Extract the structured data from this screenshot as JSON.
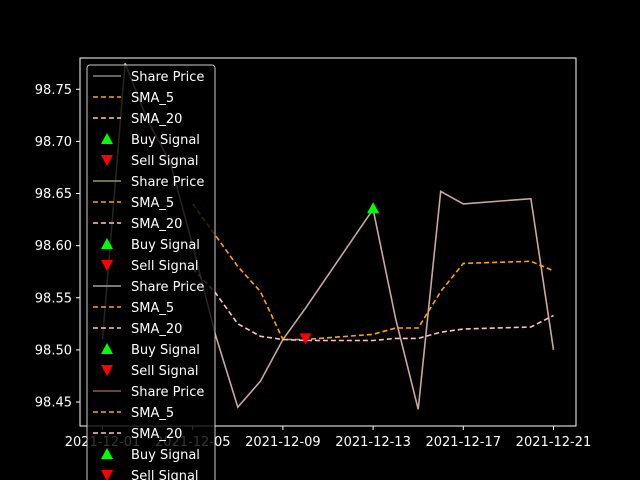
{
  "chart_data": {
    "type": "line",
    "title": "",
    "xlabel": "",
    "ylabel": "",
    "background": "#000000",
    "foreground": "#ffffff",
    "x_tick_labels": [
      "2021-12-01",
      "2021-12-05",
      "2021-12-09",
      "2021-12-13",
      "2021-12-17",
      "2021-12-21"
    ],
    "y_tick_labels": [
      "98.45",
      "98.50",
      "98.55",
      "98.60",
      "98.65",
      "98.70",
      "98.75"
    ],
    "xlim": [
      "2021-11-30",
      "2021-12-22"
    ],
    "ylim": [
      98.427,
      98.78
    ],
    "dates": [
      "2021-12-01",
      "2021-12-02",
      "2021-12-03",
      "2021-12-04",
      "2021-12-05",
      "2021-12-06",
      "2021-12-07",
      "2021-12-08",
      "2021-12-09",
      "2021-12-10",
      "2021-12-13",
      "2021-12-14",
      "2021-12-15",
      "2021-12-16",
      "2021-12-17",
      "2021-12-20",
      "2021-12-21"
    ],
    "series": [
      {
        "name": "Share Price",
        "style": "solid",
        "color": "#c8a8a0",
        "values": [
          98.51,
          98.775,
          98.72,
          98.68,
          98.6,
          98.515,
          98.445,
          98.47,
          98.51,
          98.54,
          98.635,
          98.53,
          98.443,
          98.652,
          98.64,
          98.645,
          98.5
        ]
      },
      {
        "name": "SMA_5",
        "style": "dashed",
        "color": "#ffa500",
        "values": [
          null,
          null,
          null,
          null,
          98.64,
          98.61,
          98.58,
          98.556,
          98.51,
          98.51,
          98.515,
          98.521,
          98.521,
          98.556,
          98.583,
          98.585,
          98.576
        ]
      },
      {
        "name": "SMA_20",
        "style": "dashed",
        "color": "#ffc0cb",
        "values": [
          null,
          null,
          null,
          null,
          98.578,
          98.555,
          98.525,
          98.513,
          98.51,
          98.509,
          98.509,
          98.511,
          98.511,
          98.517,
          98.52,
          98.522,
          98.533
        ]
      }
    ],
    "buy_signals": [
      {
        "date": "2021-12-13",
        "value": 98.636
      }
    ],
    "sell_signals": [
      {
        "date": "2021-12-10",
        "value": 98.511
      }
    ],
    "legend_placement": "upper-left",
    "legend_entries": [
      {
        "label": "Share Price",
        "kind": "line",
        "color": "#7a8a80"
      },
      {
        "label": "SMA_5",
        "kind": "dash",
        "color": "#ffa500"
      },
      {
        "label": "SMA_20",
        "kind": "dash",
        "color": "#ffc0cb"
      },
      {
        "label": "Buy Signal",
        "kind": "up",
        "color": "#00ff00"
      },
      {
        "label": "Sell Signal",
        "kind": "down",
        "color": "#ff0000"
      },
      {
        "label": "Share Price",
        "kind": "line",
        "color": "#8a9a70"
      },
      {
        "label": "SMA_5",
        "kind": "dash",
        "color": "#ffa500"
      },
      {
        "label": "SMA_20",
        "kind": "dash",
        "color": "#ffc0cb"
      },
      {
        "label": "Buy Signal",
        "kind": "up",
        "color": "#00ff00"
      },
      {
        "label": "Sell Signal",
        "kind": "down",
        "color": "#ff0000"
      },
      {
        "label": "Share Price",
        "kind": "line",
        "color": "#a0a0a8"
      },
      {
        "label": "SMA_5",
        "kind": "dash",
        "color": "#ffa500"
      },
      {
        "label": "SMA_20",
        "kind": "dash",
        "color": "#ffc0cb"
      },
      {
        "label": "Buy Signal",
        "kind": "up",
        "color": "#00ff00"
      },
      {
        "label": "Sell Signal",
        "kind": "down",
        "color": "#ff0000"
      },
      {
        "label": "Share Price",
        "kind": "line",
        "color": "#8a5a50"
      },
      {
        "label": "SMA_5",
        "kind": "dash",
        "color": "#ffa500"
      },
      {
        "label": "SMA_20",
        "kind": "dash",
        "color": "#ffc0cb"
      },
      {
        "label": "Buy Signal",
        "kind": "up",
        "color": "#00ff00"
      },
      {
        "label": "Sell Signal",
        "kind": "down",
        "color": "#ff0000"
      }
    ],
    "grid": false
  }
}
